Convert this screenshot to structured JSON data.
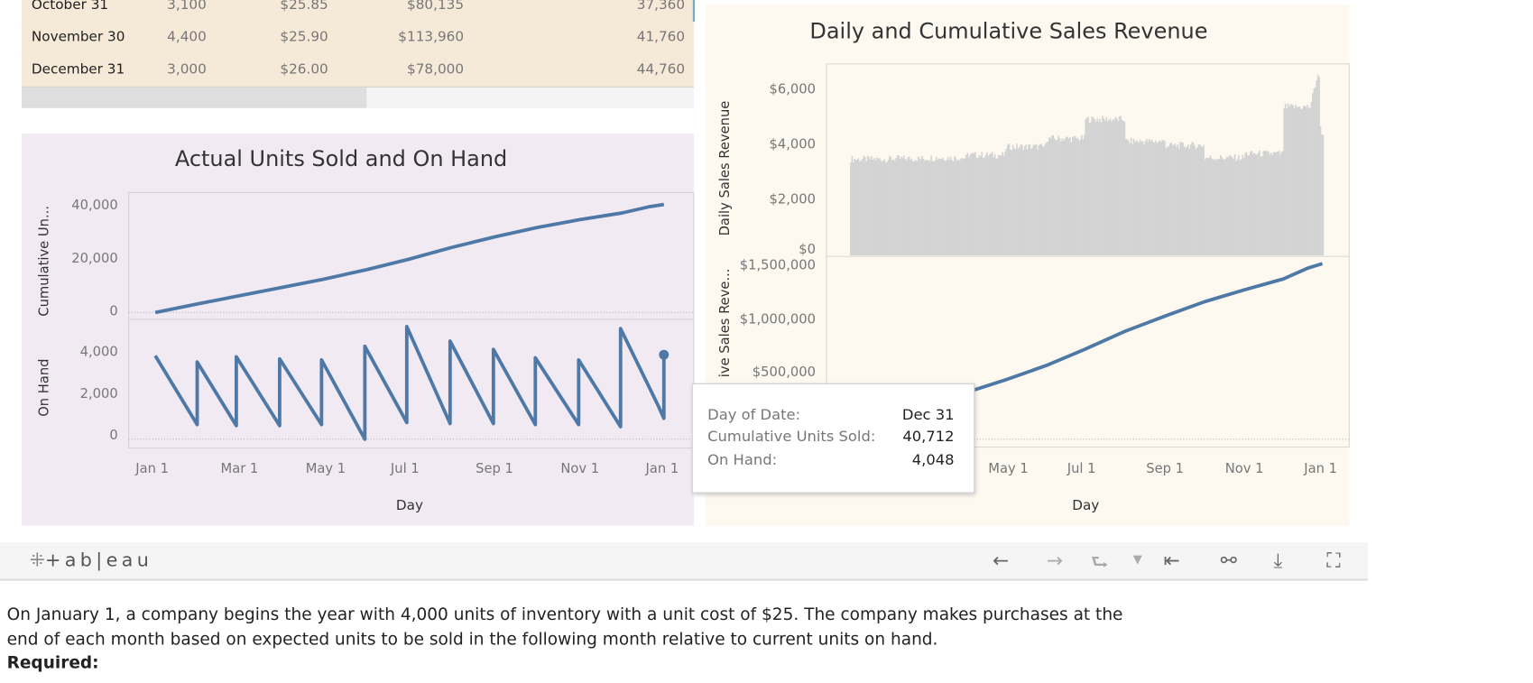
{
  "table": {
    "rows": [
      {
        "date": "October 31",
        "units": "3,100",
        "unit_cost": "$25.85",
        "total_cost": "$80,135",
        "cumulative": "37,360"
      },
      {
        "date": "November 30",
        "units": "4,400",
        "unit_cost": "$25.90",
        "total_cost": "$113,960",
        "cumulative": "41,760"
      },
      {
        "date": "December 31",
        "units": "3,000",
        "unit_cost": "$26.00",
        "total_cost": "$78,000",
        "cumulative": "44,760"
      }
    ]
  },
  "left_panel": {
    "title": "Actual Units Sold and On Hand",
    "top_axis_label": "Cumulative Un...",
    "bottom_axis_label": "On Hand",
    "x_axis_title": "Day"
  },
  "right_panel": {
    "title": "Daily and Cumulative Sales Revenue",
    "top_axis_label": "Daily Sales Revenue",
    "bottom_axis_label": "ive Sales Reve...",
    "x_axis_title": "Day"
  },
  "chart_data": [
    {
      "type": "line",
      "name_key": "cumulative_units",
      "ylabel": "Cumulative Un...",
      "xlabel": "Day",
      "ylim": [
        0,
        45000
      ],
      "y_ticks": [
        "40,000",
        "20,000",
        "0"
      ],
      "y_tick_values": [
        40000,
        20000,
        0
      ],
      "x_ticks": [
        "Jan 1",
        "Mar 1",
        "May 1",
        "Jul 1",
        "Sep 1",
        "Nov 1",
        "Jan 1"
      ],
      "color": "#4e79a7",
      "points": [
        [
          "2021-01-01",
          0
        ],
        [
          "2021-02-01",
          3300
        ],
        [
          "2021-03-01",
          6200
        ],
        [
          "2021-04-01",
          9400
        ],
        [
          "2021-05-01",
          12500
        ],
        [
          "2021-06-01",
          16100
        ],
        [
          "2021-07-01",
          20000
        ],
        [
          "2021-08-01",
          24500
        ],
        [
          "2021-09-01",
          28500
        ],
        [
          "2021-10-01",
          32000
        ],
        [
          "2021-11-01",
          35000
        ],
        [
          "2021-12-01",
          37500
        ],
        [
          "2021-12-20",
          39800
        ],
        [
          "2021-12-31",
          40712
        ]
      ]
    },
    {
      "type": "line",
      "name_key": "on_hand",
      "ylabel": "On Hand",
      "xlabel": "Day",
      "ylim": [
        0,
        5800
      ],
      "y_ticks": [
        "4,000",
        "2,000",
        "0"
      ],
      "y_tick_values": [
        4000,
        2000,
        0
      ],
      "x_ticks": [
        "Jan 1",
        "Mar 1",
        "May 1",
        "Jul 1",
        "Sep 1",
        "Nov 1",
        "Jan 1"
      ],
      "color": "#4e79a7",
      "points": [
        [
          "2021-01-01",
          4000
        ],
        [
          "2021-01-31",
          700
        ],
        [
          "2021-01-31",
          3700
        ],
        [
          "2021-02-28",
          650
        ],
        [
          "2021-02-28",
          3950
        ],
        [
          "2021-03-31",
          650
        ],
        [
          "2021-03-31",
          3850
        ],
        [
          "2021-04-30",
          700
        ],
        [
          "2021-04-30",
          3800
        ],
        [
          "2021-05-31",
          0
        ],
        [
          "2021-05-31",
          4450
        ],
        [
          "2021-06-30",
          800
        ],
        [
          "2021-06-30",
          5400
        ],
        [
          "2021-07-31",
          750
        ],
        [
          "2021-07-31",
          4700
        ],
        [
          "2021-08-31",
          750
        ],
        [
          "2021-08-31",
          4300
        ],
        [
          "2021-09-30",
          700
        ],
        [
          "2021-09-30",
          3900
        ],
        [
          "2021-10-31",
          700
        ],
        [
          "2021-10-31",
          3800
        ],
        [
          "2021-11-30",
          600
        ],
        [
          "2021-11-30",
          5300
        ],
        [
          "2021-12-27",
          1600
        ],
        [
          "2021-12-31",
          1000
        ],
        [
          "2021-12-31",
          4048
        ]
      ]
    },
    {
      "type": "bar",
      "name_key": "daily_sales_revenue",
      "ylabel": "Daily Sales Revenue",
      "ylim": [
        0,
        6700
      ],
      "y_ticks": [
        "$6,000",
        "$4,000",
        "$2,000",
        "$0"
      ],
      "y_tick_values": [
        6000,
        4000,
        2000,
        0
      ],
      "color": "#d3d3d3",
      "monthly_daily_revenue_level": [
        [
          "Jan",
          3500
        ],
        [
          "Feb",
          3520
        ],
        [
          "Mar",
          3550
        ],
        [
          "Apr",
          3650
        ],
        [
          "May",
          3950
        ],
        [
          "Jun",
          4250
        ],
        [
          "Jul",
          4950
        ],
        [
          "Aug",
          4150
        ],
        [
          "Sep",
          4000
        ],
        [
          "Oct",
          3550
        ],
        [
          "Nov",
          3700
        ],
        [
          "Dec",
          5400
        ]
      ],
      "peak": [
        "2021-12-27",
        6600
      ]
    },
    {
      "type": "line",
      "name_key": "cumulative_sales_revenue",
      "ylabel": "ive Sales Reve...",
      "xlabel": "Day",
      "ylim": [
        0,
        1600000
      ],
      "y_ticks": [
        "$1,500,000",
        "$1,000,000",
        "$500,000"
      ],
      "y_tick_values": [
        1500000,
        1000000,
        500000
      ],
      "x_ticks": [
        "Jan 1",
        "Mar 1",
        "May 1",
        "Jul 1",
        "Sep 1",
        "Nov 1",
        "Jan 1"
      ],
      "color": "#4e79a7",
      "points": [
        [
          "2021-01-01",
          0
        ],
        [
          "2021-02-01",
          120000
        ],
        [
          "2021-03-01",
          225000
        ],
        [
          "2021-04-01",
          340000
        ],
        [
          "2021-05-01",
          455000
        ],
        [
          "2021-06-01",
          585000
        ],
        [
          "2021-07-01",
          735000
        ],
        [
          "2021-08-01",
          900000
        ],
        [
          "2021-09-01",
          1040000
        ],
        [
          "2021-10-01",
          1170000
        ],
        [
          "2021-11-01",
          1280000
        ],
        [
          "2021-12-01",
          1380000
        ],
        [
          "2021-12-20",
          1480000
        ],
        [
          "2021-12-31",
          1520000
        ]
      ]
    }
  ],
  "tooltip": {
    "rows": [
      {
        "label": "Day of Date:",
        "value": "Dec 31"
      },
      {
        "label": "Cumulative Units Sold:",
        "value": "40,712"
      },
      {
        "label": "On Hand:",
        "value": "4,048"
      }
    ]
  },
  "toolbar": {
    "logo": "+ab|eau",
    "icons": [
      "undo-icon",
      "redo-icon",
      "revert-icon",
      "dropdown-icon",
      "reset-icon",
      "share-icon",
      "download-icon",
      "fullscreen-icon"
    ]
  },
  "description": {
    "line1": "On January 1, a company begins the year with 4,000 units of inventory with a unit cost of $25. The company makes purchases at the",
    "line2": "end of each month based on expected units to be sold in the following month relative to current units on hand.",
    "required": "Required:"
  }
}
